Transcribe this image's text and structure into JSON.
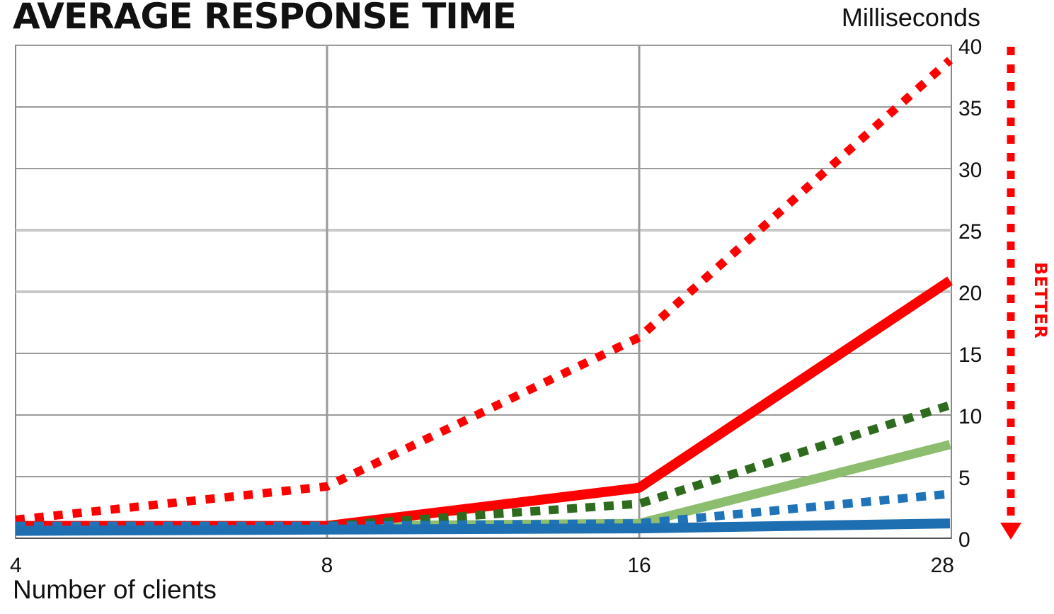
{
  "chart_data": {
    "type": "line",
    "title": "AVERAGE RESPONSE TIME",
    "ylabel": "Milliseconds",
    "xlabel": "Number of clients",
    "x": [
      4,
      8,
      16,
      28
    ],
    "x_tick_labels": [
      "4",
      "8",
      "16",
      "28"
    ],
    "ylim": [
      0,
      40
    ],
    "y_ticks": [
      0,
      5,
      10,
      15,
      20,
      25,
      30,
      35,
      40
    ],
    "y_tick_labels": [
      "0",
      "5",
      "10",
      "15",
      "20",
      "25",
      "30",
      "35",
      "40"
    ],
    "grid": true,
    "annotation": "BETTER",
    "series": [
      {
        "values": [
          1.5,
          4.2,
          16.3,
          38.8
        ],
        "color": "#ff0000",
        "style": "dotted"
      },
      {
        "values": [
          1.0,
          1.0,
          4.1,
          20.9
        ],
        "color": "#ff0000",
        "style": "solid"
      },
      {
        "values": [
          1.0,
          1.0,
          2.8,
          10.8
        ],
        "color": "#2e6b1f",
        "style": "dotted"
      },
      {
        "values": [
          1.0,
          1.0,
          1.2,
          7.6
        ],
        "color": "#8dbd6e",
        "style": "solid"
      },
      {
        "values": [
          1.0,
          1.0,
          1.2,
          3.6
        ],
        "color": "#1e73b9",
        "style": "dotted"
      },
      {
        "values": [
          0.6,
          0.7,
          0.8,
          1.2
        ],
        "color": "#1e6fb2",
        "style": "solid"
      }
    ]
  }
}
